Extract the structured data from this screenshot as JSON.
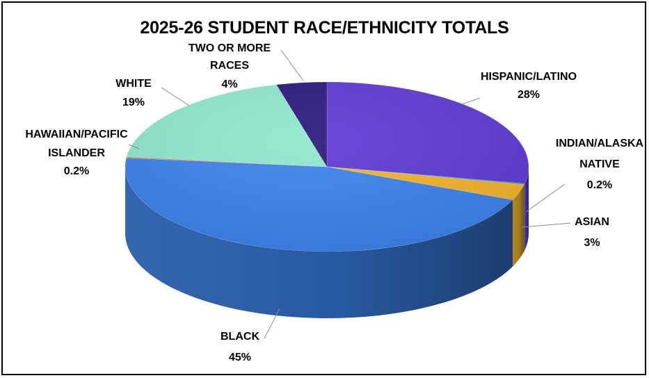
{
  "chart_data": {
    "type": "pie",
    "title": "2025-26 STUDENT RACE/ETHNICITY TOTALS",
    "slices": [
      {
        "label": "HISPANIC/LATINO",
        "value_label": "28%",
        "value": 28,
        "color": "#5f3bd6"
      },
      {
        "label": "INDIAN/ALASKA NATIVE",
        "value_label": "0.2%",
        "value": 0.2,
        "color": "#25a0d6"
      },
      {
        "label": "ASIAN",
        "value_label": "3%",
        "value": 3,
        "color": "#f5b32a"
      },
      {
        "label": "BLACK",
        "value_label": "45%",
        "value": 45,
        "color": "#3b82ec"
      },
      {
        "label": "HAWAIIAN/PACIFIC ISLANDER",
        "value_label": "0.2%",
        "value": 0.2,
        "color": "#e07a3a"
      },
      {
        "label": "WHITE",
        "value_label": "19%",
        "value": 19,
        "color": "#8ee8cd"
      },
      {
        "label": "TWO OR MORE RACES",
        "value_label": "4%",
        "value": 4,
        "color": "#2b1a7c"
      }
    ],
    "legend": "none"
  }
}
